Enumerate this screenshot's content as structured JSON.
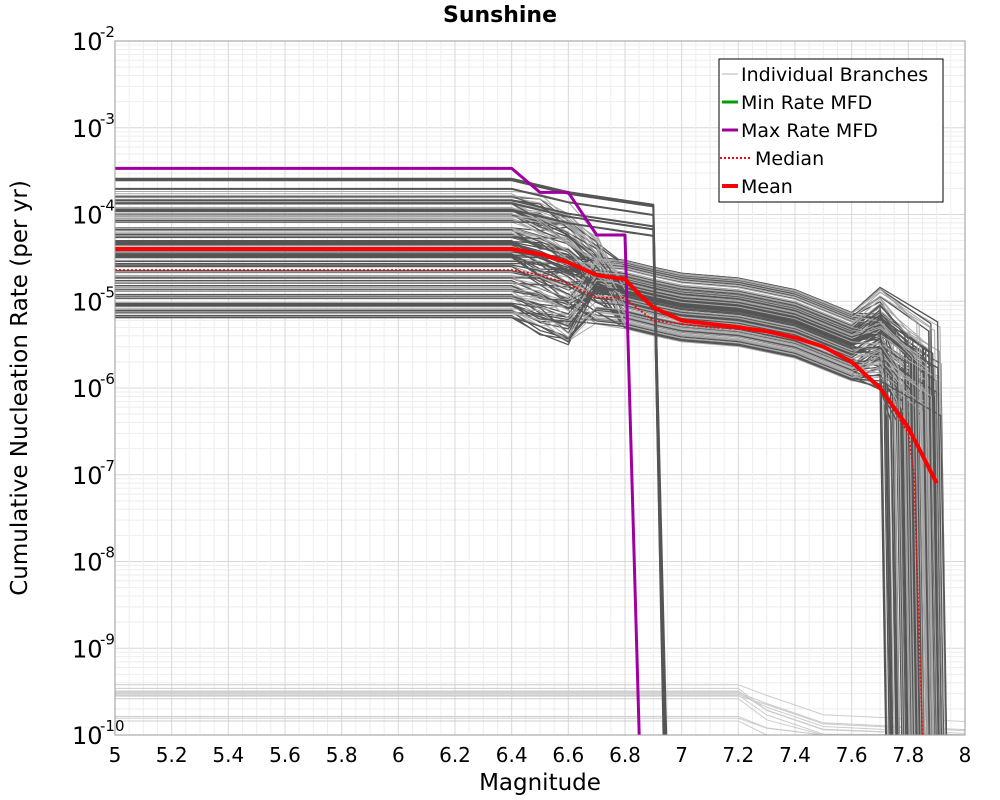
{
  "chart_data": {
    "type": "line",
    "title": "Sunshine",
    "xlabel": "Magnitude",
    "ylabel": "Cumulative Nucleation Rate (per yr)",
    "xlim": [
      5,
      8
    ],
    "ylim": [
      1e-10,
      0.01
    ],
    "y_scale": "log",
    "grid": true,
    "legend_position": "top-right",
    "x_ticks": [
      "5",
      "5.2",
      "5.4",
      "5.6",
      "5.8",
      "6",
      "6.2",
      "6.4",
      "6.6",
      "6.8",
      "7",
      "7.2",
      "7.4",
      "7.6",
      "7.8",
      "8"
    ],
    "y_ticks": [
      {
        "base": "10",
        "exp": "-2",
        "value": 0.01
      },
      {
        "base": "10",
        "exp": "-3",
        "value": 0.001
      },
      {
        "base": "10",
        "exp": "-4",
        "value": 0.0001
      },
      {
        "base": "10",
        "exp": "-5",
        "value": 1e-05
      },
      {
        "base": "10",
        "exp": "-6",
        "value": 1e-06
      },
      {
        "base": "10",
        "exp": "-7",
        "value": 1e-07
      },
      {
        "base": "10",
        "exp": "-8",
        "value": 1e-08
      },
      {
        "base": "10",
        "exp": "-9",
        "value": 1e-09
      },
      {
        "base": "10",
        "exp": "-10",
        "value": 1e-10
      }
    ],
    "legend": [
      {
        "label": "Individual Branches",
        "color": "#b0b0b0",
        "style": "solid-thin"
      },
      {
        "label": "Min Rate MFD",
        "color": "#00a000",
        "style": "solid"
      },
      {
        "label": "Max Rate MFD",
        "color": "#a000a0",
        "style": "solid"
      },
      {
        "label": "Median",
        "color": "#ff0000",
        "style": "dotted"
      },
      {
        "label": "Mean",
        "color": "#ff0000",
        "style": "solid-thick"
      }
    ],
    "series": [
      {
        "name": "Max Rate MFD",
        "color": "#a000a0",
        "x": [
          5.0,
          6.4,
          6.5,
          6.6,
          6.7,
          6.8,
          6.85
        ],
        "y": [
          0.00034,
          0.00034,
          0.00018,
          0.00018,
          5.8e-05,
          5.8e-05,
          1e-10
        ]
      },
      {
        "name": "Mean",
        "color": "#ff0000",
        "x": [
          5.0,
          6.4,
          6.5,
          6.6,
          6.7,
          6.8,
          6.85,
          6.9,
          7.0,
          7.1,
          7.2,
          7.3,
          7.4,
          7.5,
          7.6,
          7.7,
          7.8,
          7.9
        ],
        "y": [
          4e-05,
          4e-05,
          3.5e-05,
          2.8e-05,
          2e-05,
          1.8e-05,
          1.2e-05,
          8.5e-06,
          6e-06,
          5.5e-06,
          5e-06,
          4.5e-06,
          3.8e-06,
          3e-06,
          2e-06,
          1e-06,
          3.5e-07,
          8e-08
        ]
      },
      {
        "name": "Median",
        "color": "#ff0000",
        "x": [
          5.0,
          6.4,
          6.5,
          6.6,
          6.7,
          6.8,
          6.85,
          6.9,
          7.0,
          7.1,
          7.2,
          7.3,
          7.4,
          7.5,
          7.6,
          7.7,
          7.8,
          7.82,
          7.85
        ],
        "y": [
          2.3e-05,
          2.3e-05,
          2e-05,
          1.6e-05,
          1.1e-05,
          1.1e-05,
          8e-06,
          6e-06,
          5.5e-06,
          5e-06,
          4.8e-06,
          4.5e-06,
          3.8e-06,
          3e-06,
          2e-06,
          1e-06,
          3e-07,
          1e-07,
          1e-10
        ]
      }
    ]
  }
}
